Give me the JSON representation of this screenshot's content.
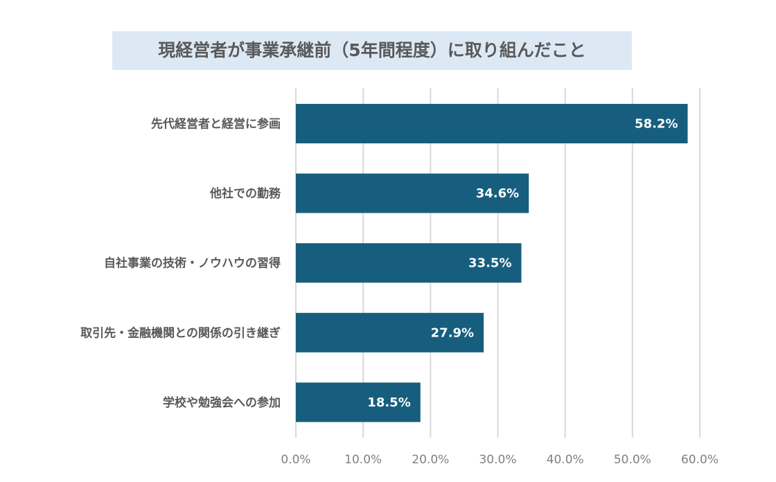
{
  "chart_data": {
    "type": "bar",
    "orientation": "horizontal",
    "title": "現経営者が事業承継前（5年間程度）に取り組んだこと",
    "categories": [
      "先代経営者と経営に参画",
      "他社での勤務",
      "自社事業の技術・ノウハウの習得",
      "取引先・金融機関との関係の引き継ぎ",
      "学校や勉強会への参加"
    ],
    "values": [
      58.2,
      34.6,
      33.5,
      27.9,
      18.5
    ],
    "data_labels": [
      "58.2%",
      "34.6%",
      "33.5%",
      "27.9%",
      "18.5%"
    ],
    "xlim": [
      0,
      60
    ],
    "x_ticks": [
      "0.0%",
      "10.0%",
      "20.0%",
      "30.0%",
      "40.0%",
      "50.0%",
      "60.0%"
    ],
    "grid": true,
    "legend": "none",
    "colors": {
      "bar": "#175e7e",
      "title_bg": "#dce9f5",
      "grid": "#d9d9d9"
    }
  }
}
